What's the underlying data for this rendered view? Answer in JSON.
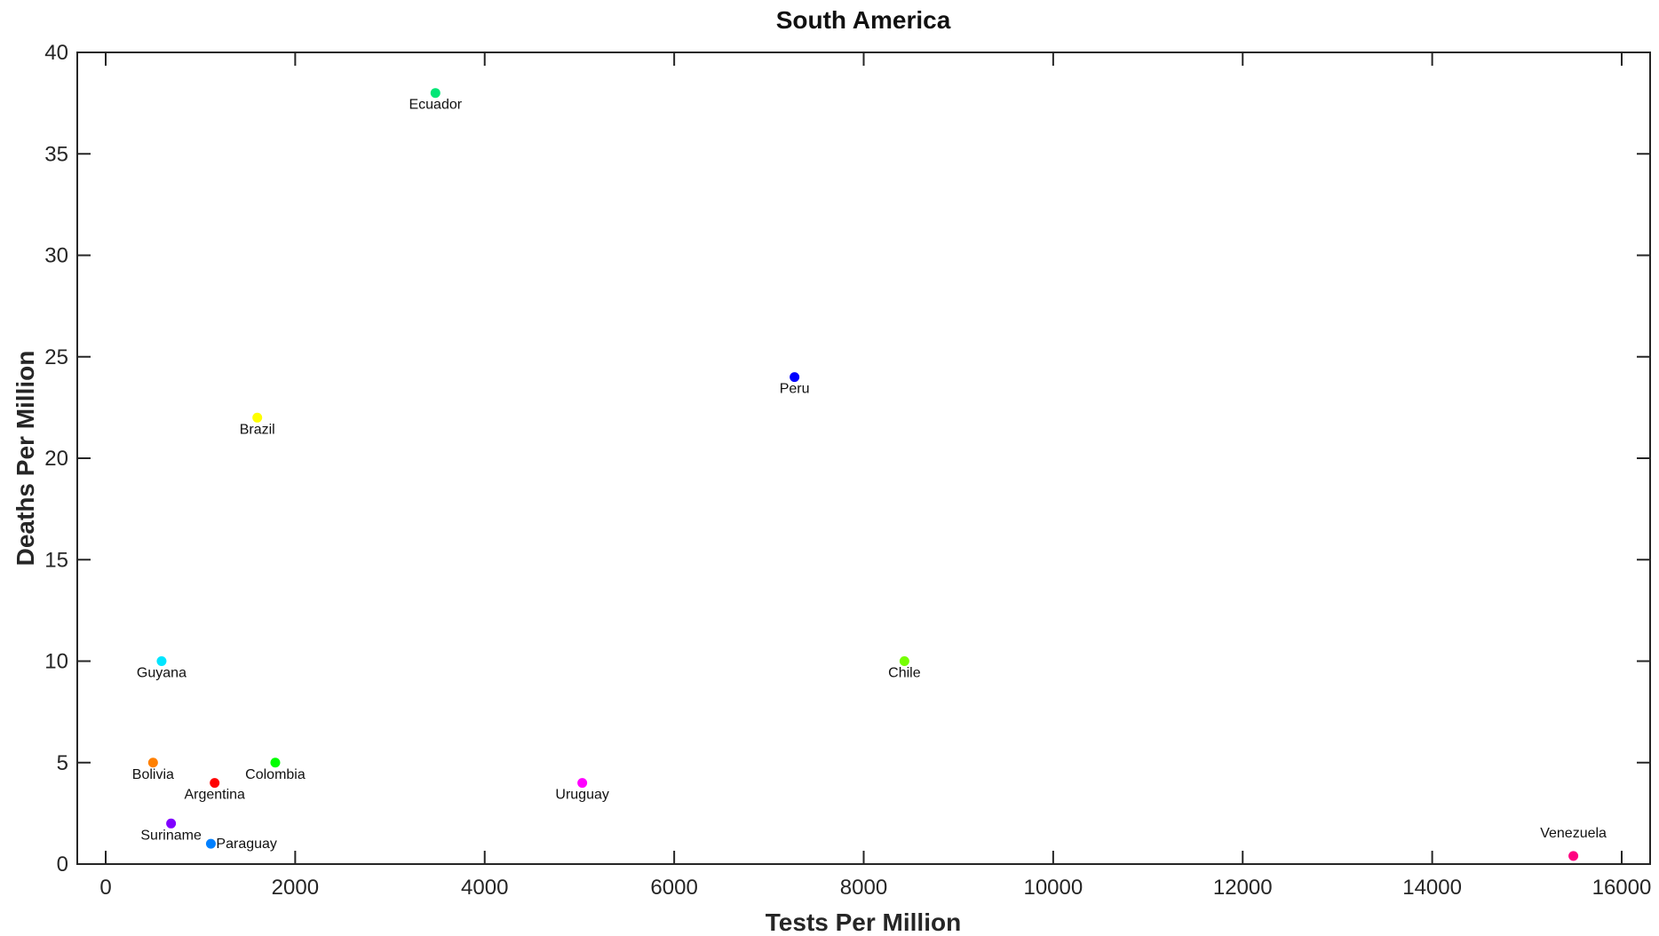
{
  "chart_data": {
    "type": "scatter",
    "title": "South America",
    "xlabel": "Tests Per Million",
    "ylabel": "Deaths Per Million",
    "xlim": [
      -300,
      16300
    ],
    "ylim": [
      0,
      40
    ],
    "xticks": [
      0,
      2000,
      4000,
      6000,
      8000,
      10000,
      12000,
      14000,
      16000
    ],
    "xtick_labels": [
      "0",
      "2000",
      "4000",
      "6000",
      "8000",
      "10000",
      "12000",
      "14000",
      "16000"
    ],
    "yticks": [
      0,
      5,
      10,
      15,
      20,
      25,
      30,
      35,
      40
    ],
    "ytick_labels": [
      "0",
      "5",
      "10",
      "15",
      "20",
      "25",
      "30",
      "35",
      "40"
    ],
    "grid": false,
    "box": true,
    "points": [
      {
        "label": "Ecuador",
        "x": 3480,
        "y": 38,
        "color": "#00e676",
        "label_pos": "below"
      },
      {
        "label": "Peru",
        "x": 7270,
        "y": 24,
        "color": "#0000ff",
        "label_pos": "below"
      },
      {
        "label": "Brazil",
        "x": 1600,
        "y": 22,
        "color": "#ffff00",
        "label_pos": "below"
      },
      {
        "label": "Guyana",
        "x": 590,
        "y": 10,
        "color": "#00e5ff",
        "label_pos": "below"
      },
      {
        "label": "Chile",
        "x": 8430,
        "y": 10,
        "color": "#76ff03",
        "label_pos": "below"
      },
      {
        "label": "Bolivia",
        "x": 500,
        "y": 5,
        "color": "#ff8000",
        "label_pos": "below"
      },
      {
        "label": "Colombia",
        "x": 1790,
        "y": 5,
        "color": "#00ff00",
        "label_pos": "below"
      },
      {
        "label": "Argentina",
        "x": 1150,
        "y": 4,
        "color": "#ff0000",
        "label_pos": "below"
      },
      {
        "label": "Uruguay",
        "x": 5030,
        "y": 4,
        "color": "#ff00ff",
        "label_pos": "below"
      },
      {
        "label": "Suriname",
        "x": 690,
        "y": 2,
        "color": "#8000ff",
        "label_pos": "below"
      },
      {
        "label": "Paraguay",
        "x": 1110,
        "y": 1,
        "color": "#0080ff",
        "label_pos": "right"
      },
      {
        "label": "Venezuela",
        "x": 15490,
        "y": 0.4,
        "color": "#ff0080",
        "label_pos": "above"
      }
    ]
  }
}
